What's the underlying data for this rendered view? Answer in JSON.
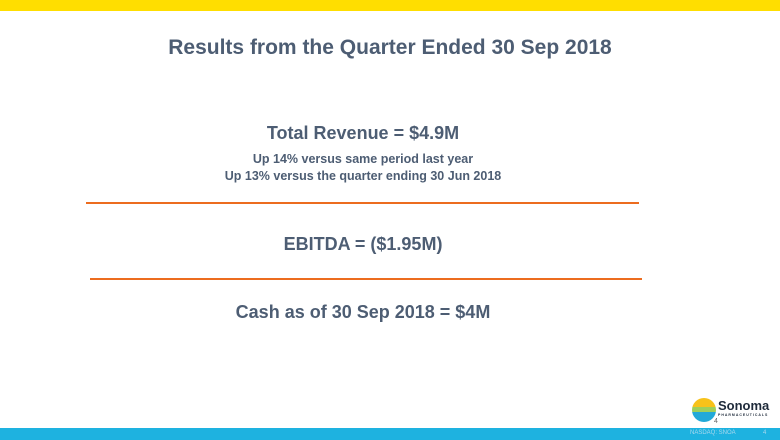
{
  "title": "Results from the Quarter Ended 30 Sep 2018",
  "revenue": {
    "headline": "Total Revenue = $4.9M",
    "line1": "Up 14% versus same period last year",
    "line2": "Up 13% versus the quarter ending 30 Jun 2018"
  },
  "ebitda": "EBITDA = ($1.95M)",
  "cash": "Cash as of 30 Sep 2018 = $4M",
  "logo": {
    "name": "Sonoma",
    "subtitle": "PHARMACEUTICALS"
  },
  "footer": {
    "ticker": "NASDAQ: SNOA",
    "page": "4"
  },
  "colors": {
    "top_bar": "#ffde00",
    "bottom_bar": "#1eb2e0",
    "rule": "#ec6c1f",
    "text": "#4d5d73"
  }
}
